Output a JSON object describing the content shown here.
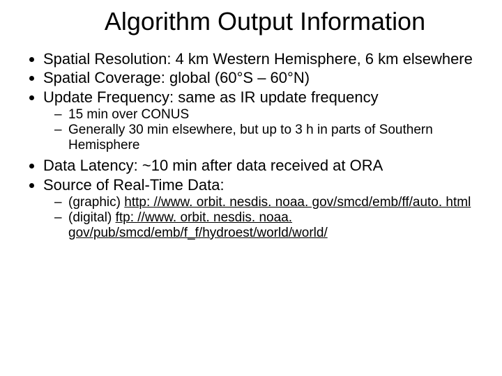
{
  "title": "Algorithm Output Information",
  "bullets": {
    "b1": "Spatial Resolution: 4 km Western Hemisphere, 6 km elsewhere",
    "b2": "Spatial Coverage: global (60°S – 60°N)",
    "b3": "Update Frequency: same as IR update frequency",
    "b3_sub1": "15 min over CONUS",
    "b3_sub2": "Generally 30 min elsewhere, but up to 3 h in parts of Southern Hemisphere",
    "b4": "Data Latency: ~10 min after data received at ORA",
    "b5": "Source of Real-Time Data:",
    "b5_sub1_prefix": "(graphic) ",
    "b5_sub1_link": "http: //www. orbit. nesdis. noaa. gov/smcd/emb/ff/auto. html",
    "b5_sub2_prefix": "(digital) ",
    "b5_sub2_link": "ftp: //www. orbit. nesdis. noaa. gov/pub/smcd/emb/f_f/hydroest/world/world/"
  }
}
